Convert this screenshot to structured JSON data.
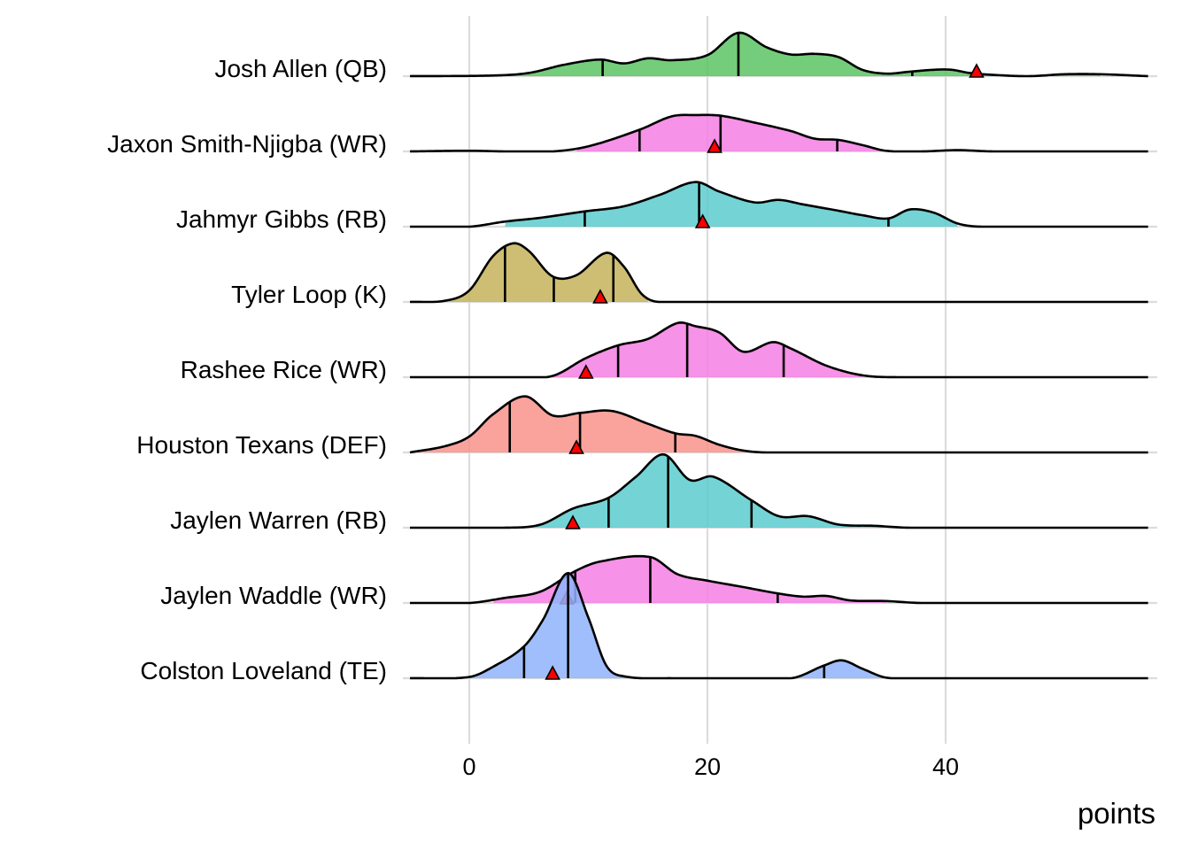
{
  "chart_data": {
    "type": "ridgeline",
    "title": "",
    "xlabel": "points",
    "ylabel": "",
    "xlim": [
      -5,
      57
    ],
    "xticks": [
      0,
      20,
      40
    ],
    "grid": true,
    "legend": "none",
    "marker_meaning": "red triangle = projected points",
    "quantile_lines": "25th, 50th, 75th percentiles",
    "fill_range": "central interval of distribution shaded",
    "series": [
      {
        "name": "Josh Allen (QB)",
        "position": "QB",
        "color": "#5cc463",
        "quantiles": [
          11.2,
          22.6,
          37.2
        ],
        "projection": 42.6,
        "fill_range": [
          2,
          53
        ],
        "density": [
          [
            -5,
            0
          ],
          [
            2,
            0.01
          ],
          [
            5,
            0.05
          ],
          [
            8,
            0.18
          ],
          [
            11,
            0.26
          ],
          [
            13,
            0.2
          ],
          [
            15,
            0.28
          ],
          [
            17,
            0.25
          ],
          [
            20,
            0.33
          ],
          [
            22.6,
            0.68
          ],
          [
            25,
            0.45
          ],
          [
            27,
            0.34
          ],
          [
            29,
            0.35
          ],
          [
            31,
            0.3
          ],
          [
            33,
            0.1
          ],
          [
            35,
            0.04
          ],
          [
            37,
            0.07
          ],
          [
            39,
            0.1
          ],
          [
            40.5,
            0.1
          ],
          [
            42,
            0.05
          ],
          [
            44,
            0.02
          ],
          [
            47,
            0.0
          ],
          [
            50,
            0.03
          ],
          [
            53,
            0.03
          ],
          [
            57,
            0
          ]
        ]
      },
      {
        "name": "Jaxon Smith-Njigba (WR)",
        "position": "WR",
        "color": "#f47fe3",
        "quantiles": [
          14.3,
          21.1,
          30.9
        ],
        "projection": 20.6,
        "fill_range": [
          9,
          37
        ],
        "density": [
          [
            -5,
            0
          ],
          [
            0,
            0.01
          ],
          [
            3,
            0.0
          ],
          [
            7,
            0.0
          ],
          [
            10,
            0.08
          ],
          [
            14.3,
            0.34
          ],
          [
            17,
            0.55
          ],
          [
            19,
            0.57
          ],
          [
            21.1,
            0.56
          ],
          [
            24,
            0.45
          ],
          [
            27,
            0.32
          ],
          [
            29,
            0.2
          ],
          [
            31,
            0.18
          ],
          [
            33,
            0.1
          ],
          [
            35,
            0.01
          ],
          [
            38,
            0.0
          ],
          [
            41,
            0.02
          ],
          [
            44,
            0.0
          ],
          [
            57,
            0
          ]
        ]
      },
      {
        "name": "Jahmyr Gibbs (RB)",
        "position": "RB",
        "color": "#5ccbcd",
        "quantiles": [
          9.7,
          19.3,
          35.2
        ],
        "projection": 19.6,
        "fill_range": [
          3,
          41
        ],
        "density": [
          [
            -5,
            0
          ],
          [
            0,
            0.0
          ],
          [
            3,
            0.08
          ],
          [
            6,
            0.14
          ],
          [
            9.7,
            0.24
          ],
          [
            13,
            0.32
          ],
          [
            16,
            0.5
          ],
          [
            19,
            0.7
          ],
          [
            21,
            0.55
          ],
          [
            24,
            0.38
          ],
          [
            26,
            0.42
          ],
          [
            28,
            0.35
          ],
          [
            31,
            0.25
          ],
          [
            33,
            0.18
          ],
          [
            35.2,
            0.13
          ],
          [
            37,
            0.27
          ],
          [
            39,
            0.22
          ],
          [
            41,
            0.05
          ],
          [
            43,
            0.0
          ],
          [
            57,
            0
          ]
        ]
      },
      {
        "name": "Tyler Loop (K)",
        "position": "K",
        "color": "#c4b35a",
        "quantiles": [
          3.0,
          7.1,
          12.1
        ],
        "projection": 11.0,
        "fill_range": [
          -2,
          15
        ],
        "density": [
          [
            -5,
            0
          ],
          [
            -2,
            0.02
          ],
          [
            0,
            0.18
          ],
          [
            2,
            0.72
          ],
          [
            3.7,
            0.92
          ],
          [
            5,
            0.8
          ],
          [
            7,
            0.4
          ],
          [
            9,
            0.42
          ],
          [
            11.5,
            0.77
          ],
          [
            13,
            0.55
          ],
          [
            14.5,
            0.12
          ],
          [
            16,
            0.0
          ],
          [
            57,
            0
          ]
        ]
      },
      {
        "name": "Rashee Rice (WR)",
        "position": "WR",
        "color": "#f47fe3",
        "quantiles": [
          12.5,
          18.3,
          26.4
        ],
        "projection": 9.8,
        "fill_range": [
          7,
          33
        ],
        "density": [
          [
            -5,
            0
          ],
          [
            4,
            0.0
          ],
          [
            7,
            0.02
          ],
          [
            9.8,
            0.3
          ],
          [
            12.5,
            0.5
          ],
          [
            15,
            0.6
          ],
          [
            17.5,
            0.85
          ],
          [
            19,
            0.8
          ],
          [
            21,
            0.7
          ],
          [
            23,
            0.4
          ],
          [
            25.5,
            0.55
          ],
          [
            27,
            0.45
          ],
          [
            30,
            0.18
          ],
          [
            33,
            0.03
          ],
          [
            36,
            0.0
          ],
          [
            57,
            0
          ]
        ]
      },
      {
        "name": "Houston Texans (DEF)",
        "position": "DEF",
        "color": "#f8938b",
        "quantiles": [
          3.4,
          9.3,
          17.3
        ],
        "projection": 9.0,
        "fill_range": [
          -5,
          24
        ],
        "density": [
          [
            -5,
            0
          ],
          [
            -2,
            0.1
          ],
          [
            0,
            0.25
          ],
          [
            2,
            0.6
          ],
          [
            4.7,
            0.88
          ],
          [
            7,
            0.58
          ],
          [
            9.3,
            0.62
          ],
          [
            12,
            0.65
          ],
          [
            15,
            0.45
          ],
          [
            17.3,
            0.3
          ],
          [
            19,
            0.26
          ],
          [
            21,
            0.12
          ],
          [
            23,
            0.03
          ],
          [
            25,
            0.0
          ],
          [
            57,
            0
          ]
        ]
      },
      {
        "name": "Jaylen Warren (RB)",
        "position": "RB",
        "color": "#5ccbcd",
        "quantiles": [
          11.7,
          16.7,
          23.7
        ],
        "projection": 8.7,
        "fill_range": [
          5,
          35
        ],
        "density": [
          [
            -5,
            0
          ],
          [
            3,
            0.0
          ],
          [
            6,
            0.05
          ],
          [
            8.7,
            0.3
          ],
          [
            11.7,
            0.47
          ],
          [
            14,
            0.8
          ],
          [
            16.3,
            1.15
          ],
          [
            18.5,
            0.75
          ],
          [
            20.5,
            0.8
          ],
          [
            23.7,
            0.43
          ],
          [
            26,
            0.18
          ],
          [
            28.5,
            0.18
          ],
          [
            31,
            0.05
          ],
          [
            34,
            0.03
          ],
          [
            37,
            0.0
          ],
          [
            57,
            0
          ]
        ]
      },
      {
        "name": "Jaylen Waddle (WR)",
        "position": "WR",
        "color": "#f47fe3",
        "quantiles": [
          8.9,
          15.2,
          25.9
        ],
        "projection": 8.2,
        "fill_range": [
          2,
          35
        ],
        "density": [
          [
            -5,
            0
          ],
          [
            0,
            0.0
          ],
          [
            3,
            0.08
          ],
          [
            6,
            0.18
          ],
          [
            8.9,
            0.5
          ],
          [
            11,
            0.65
          ],
          [
            15.2,
            0.72
          ],
          [
            17.5,
            0.45
          ],
          [
            20,
            0.35
          ],
          [
            23,
            0.25
          ],
          [
            25.9,
            0.15
          ],
          [
            28,
            0.1
          ],
          [
            30,
            0.11
          ],
          [
            32,
            0.04
          ],
          [
            35,
            0.03
          ],
          [
            38,
            0.0
          ],
          [
            57,
            0
          ]
        ]
      },
      {
        "name": "Colston Loveland (TE)",
        "position": "TE",
        "color": "#8fb3fa",
        "quantiles": [
          4.6,
          8.3,
          29.8
        ],
        "projection": 7.0,
        "fill_range": [
          0,
          35
        ],
        "density": [
          [
            -5,
            0
          ],
          [
            0,
            0.02
          ],
          [
            2,
            0.18
          ],
          [
            4.6,
            0.5
          ],
          [
            6.2,
            0.92
          ],
          [
            8.3,
            1.65
          ],
          [
            10,
            0.95
          ],
          [
            11.5,
            0.2
          ],
          [
            13,
            0.03
          ],
          [
            17,
            0.0
          ],
          [
            27,
            0.0
          ],
          [
            29.8,
            0.2
          ],
          [
            31.3,
            0.28
          ],
          [
            33,
            0.15
          ],
          [
            35,
            0.01
          ],
          [
            38,
            0.0
          ],
          [
            57,
            0
          ]
        ]
      }
    ]
  }
}
